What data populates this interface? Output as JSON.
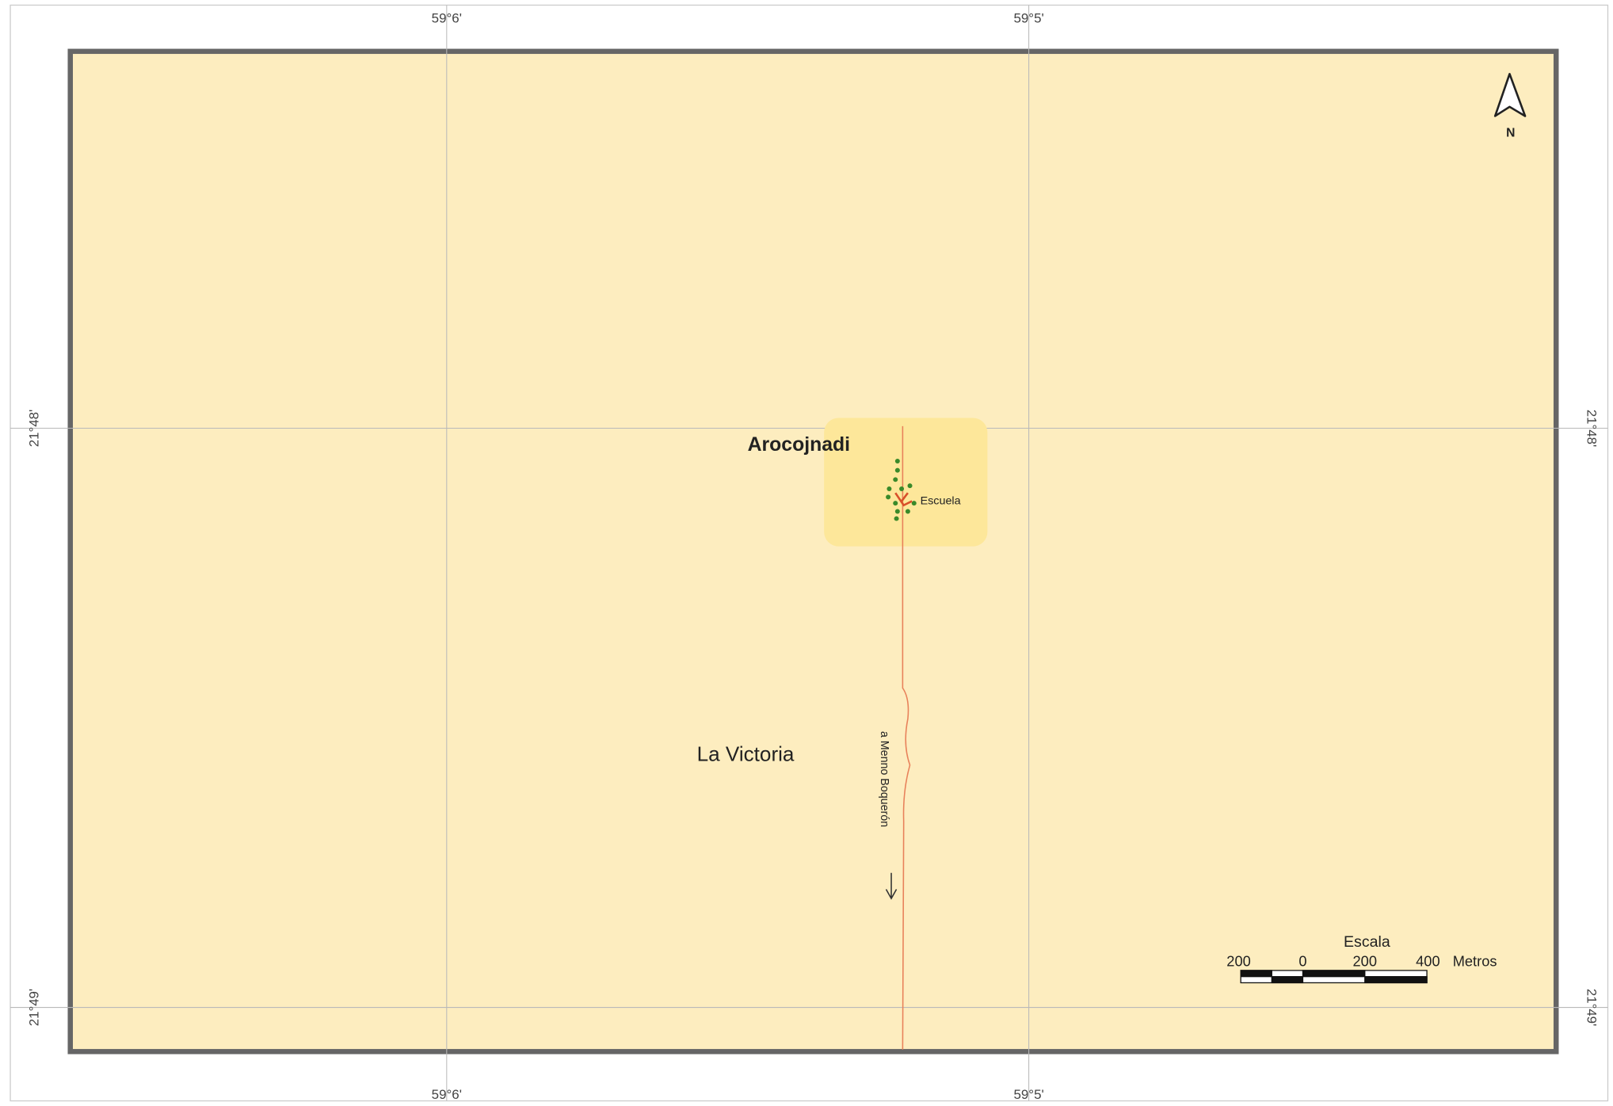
{
  "graticule": {
    "longitudes": [
      "59°6'",
      "59°5'"
    ],
    "latitudes": [
      "21°48'",
      "21°49'"
    ]
  },
  "places": {
    "community": "Arocojnadi",
    "school": "Escuela",
    "locality": "La Victoria"
  },
  "road_label": "a Menno Boquerón",
  "north": "N",
  "scale": {
    "title": "Escala",
    "ticks": [
      "200",
      "0",
      "200",
      "400"
    ],
    "unit": "Metros"
  }
}
